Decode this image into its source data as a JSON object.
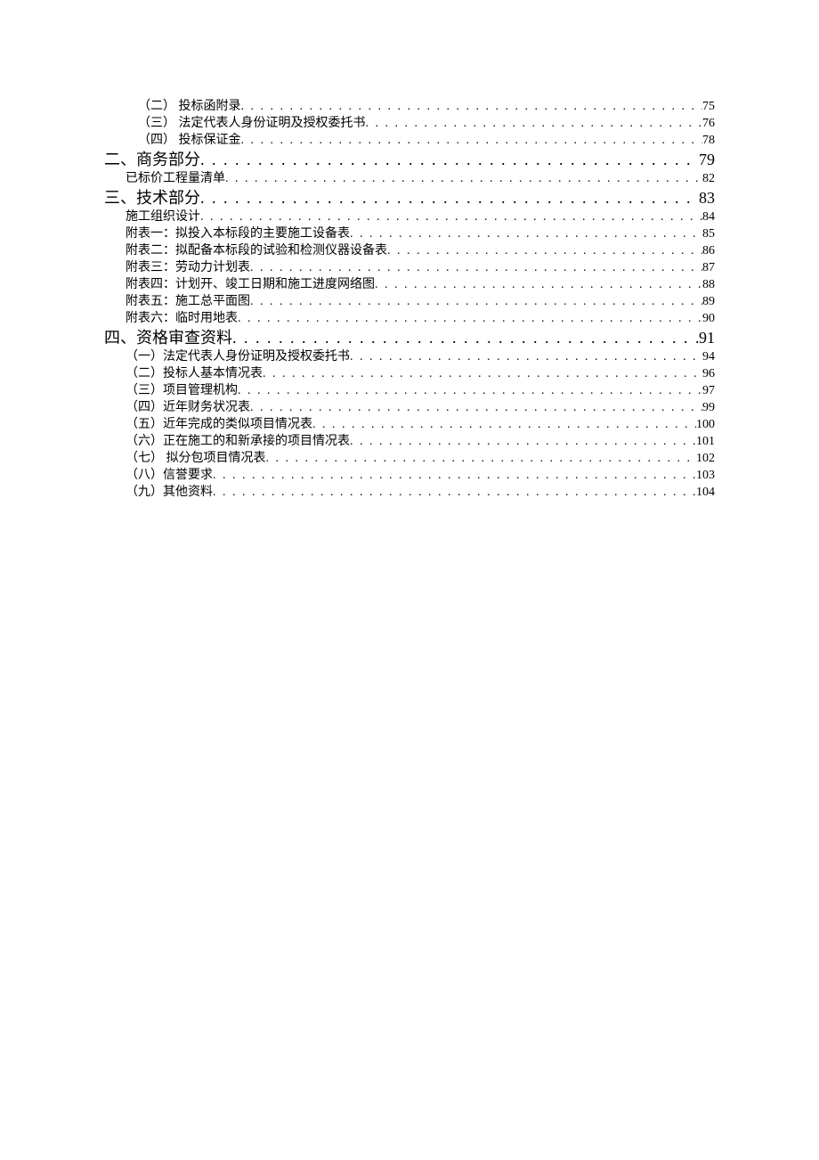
{
  "toc": {
    "text_color": "#000000",
    "background_color": "#ffffff",
    "font_family": "SimSun",
    "heading_fontsize": 18,
    "body_fontsize": 14,
    "entries": [
      {
        "level": "2",
        "label": "（二）  投标函附录",
        "page": "75"
      },
      {
        "level": "2",
        "label": "（三）  法定代表人身份证明及授权委托书",
        "page": "76"
      },
      {
        "level": "2",
        "label": "（四）  投标保证金",
        "page": "78"
      },
      {
        "level": "0",
        "label": "二、商务部分",
        "page": "79"
      },
      {
        "level": "1",
        "label": "已标价工程量清单",
        "page": "82"
      },
      {
        "level": "0",
        "label": "三、技术部分",
        "page": "83"
      },
      {
        "level": "1",
        "label": "施工组织设计",
        "page": "84"
      },
      {
        "level": "1",
        "label": "附表一：拟投入本标段的主要施工设备表",
        "page": "85"
      },
      {
        "level": "1",
        "label": "附表二：拟配备本标段的试验和检测仪器设备表",
        "page": "86"
      },
      {
        "level": "1",
        "label": "附表三：劳动力计划表",
        "page": "87"
      },
      {
        "level": "1",
        "label": "附表四：计划开、竣工日期和施工进度网络图",
        "page": "88"
      },
      {
        "level": "1",
        "label": "附表五：施工总平面图",
        "page": "89"
      },
      {
        "level": "1",
        "label": "附表六：临时用地表",
        "page": "90"
      },
      {
        "level": "0",
        "label": "四、资格审查资料",
        "page": "91"
      },
      {
        "level": "2a",
        "label": "（一）法定代表人身份证明及授权委托书",
        "page": "94"
      },
      {
        "level": "2a",
        "label": "（二）投标人基本情况表",
        "page": "96"
      },
      {
        "level": "2a",
        "label": "（三）项目管理机构",
        "page": "97"
      },
      {
        "level": "2a",
        "label": "（四）近年财务状况表",
        "page": "99"
      },
      {
        "level": "2a",
        "label": "（五）近年完成的类似项目情况表",
        "page": "100"
      },
      {
        "level": "2a",
        "label": "（六）正在施工的和新承接的项目情况表",
        "page": "101"
      },
      {
        "level": "2a",
        "label": "（七）  拟分包项目情况表",
        "page": "102"
      },
      {
        "level": "2a",
        "label": "（八）信誉要求",
        "page": "103"
      },
      {
        "level": "2a",
        "label": "（九）其他资料",
        "page": "104"
      }
    ]
  }
}
